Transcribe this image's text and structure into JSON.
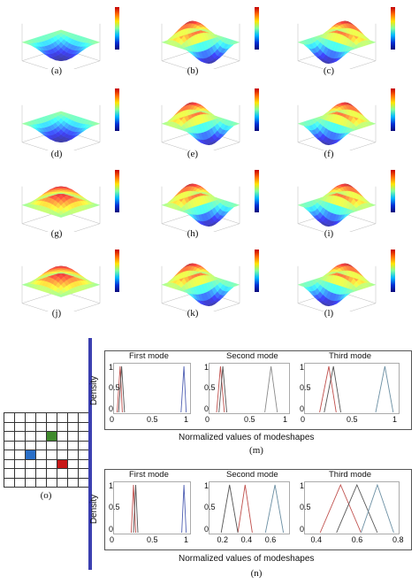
{
  "surface_panels": [
    {
      "id": "a",
      "caption": "(a)",
      "mode": "first",
      "sign": -1
    },
    {
      "id": "b",
      "caption": "(b)",
      "mode": "second",
      "sign": 1
    },
    {
      "id": "c",
      "caption": "(c)",
      "mode": "third",
      "sign": 1
    },
    {
      "id": "d",
      "caption": "(d)",
      "mode": "first",
      "sign": -1
    },
    {
      "id": "e",
      "caption": "(e)",
      "mode": "second",
      "sign": 1
    },
    {
      "id": "f",
      "caption": "(f)",
      "mode": "third",
      "sign": 1
    },
    {
      "id": "g",
      "caption": "(g)",
      "mode": "first",
      "sign": 1
    },
    {
      "id": "h",
      "caption": "(h)",
      "mode": "second",
      "sign": 1
    },
    {
      "id": "i",
      "caption": "(i)",
      "mode": "third",
      "sign": 1
    },
    {
      "id": "j",
      "caption": "(j)",
      "mode": "first",
      "sign": 1
    },
    {
      "id": "k",
      "caption": "(k)",
      "mode": "second",
      "sign": 1
    },
    {
      "id": "l",
      "caption": "(l)",
      "mode": "third",
      "sign": 1
    }
  ],
  "grid_panel": {
    "caption": "(o)",
    "rows": 8,
    "cols": 8,
    "highlighted_cells": [
      {
        "row": 2,
        "col": 4,
        "color": "#3f8a2c"
      },
      {
        "row": 4,
        "col": 2,
        "color": "#2a6fc7"
      },
      {
        "row": 5,
        "col": 5,
        "color": "#c81818"
      }
    ]
  },
  "density_figures": [
    {
      "caption": "(m)",
      "ylabel": "Density",
      "xlabel": "Normalized values of modeshapes",
      "chart_data": [
        {
          "type": "line",
          "title": "First mode",
          "ylim": [
            0,
            1
          ],
          "xticks": [
            "0",
            "0.5",
            "1"
          ],
          "yticks": [
            "0",
            "0.5",
            "1"
          ],
          "series": [
            {
              "color": "#c0504d",
              "values": [
                [
                  0.03,
                  0
                ],
                [
                  0.07,
                  1
                ],
                [
                  0.1,
                  0
                ]
              ]
            },
            {
              "color": "#555555",
              "values": [
                [
                  0.05,
                  0
                ],
                [
                  0.09,
                  1
                ],
                [
                  0.13,
                  0
                ]
              ]
            },
            {
              "color": "#4f5fb3",
              "values": [
                [
                  0.89,
                  0
                ],
                [
                  0.93,
                  1
                ],
                [
                  0.96,
                  0
                ]
              ]
            }
          ]
        },
        {
          "type": "line",
          "title": "Second mode",
          "ylim": [
            0,
            1
          ],
          "xticks": [
            "0",
            "0.5",
            "1"
          ],
          "yticks": [
            "0",
            "0.5",
            "1"
          ],
          "series": [
            {
              "color": "#c0504d",
              "values": [
                [
                  0.08,
                  0
                ],
                [
                  0.13,
                  1
                ],
                [
                  0.18,
                  0
                ]
              ]
            },
            {
              "color": "#555555",
              "values": [
                [
                  0.11,
                  0
                ],
                [
                  0.16,
                  1
                ],
                [
                  0.21,
                  0
                ]
              ]
            },
            {
              "color": "#888888",
              "values": [
                [
                  0.7,
                  0
                ],
                [
                  0.78,
                  1
                ],
                [
                  0.86,
                  0
                ]
              ]
            }
          ]
        },
        {
          "type": "line",
          "title": "Third mode",
          "ylim": [
            0,
            1
          ],
          "xticks": [
            "0",
            "0.5",
            "1"
          ],
          "yticks": [
            "0",
            "0.5",
            "1"
          ],
          "series": [
            {
              "color": "#c0504d",
              "values": [
                [
                  0.15,
                  0
                ],
                [
                  0.25,
                  1
                ],
                [
                  0.33,
                  0
                ]
              ]
            },
            {
              "color": "#555555",
              "values": [
                [
                  0.2,
                  0
                ],
                [
                  0.3,
                  1
                ],
                [
                  0.38,
                  0
                ]
              ]
            },
            {
              "color": "#6b8fa3",
              "values": [
                [
                  0.76,
                  0
                ],
                [
                  0.86,
                  1
                ],
                [
                  0.95,
                  0
                ]
              ]
            }
          ]
        }
      ]
    },
    {
      "caption": "(n)",
      "ylabel": "Density",
      "xlabel": "Normalized values of modeshapes",
      "chart_data": [
        {
          "type": "line",
          "title": "First mode",
          "ylim": [
            0,
            1
          ],
          "xticks": [
            "0",
            "0.5",
            "1"
          ],
          "yticks": [
            "0",
            "0.5",
            "1"
          ],
          "series": [
            {
              "color": "#c0504d",
              "values": [
                [
                  0.22,
                  0
                ],
                [
                  0.25,
                  1
                ],
                [
                  0.28,
                  0
                ]
              ]
            },
            {
              "color": "#555555",
              "values": [
                [
                  0.25,
                  0
                ],
                [
                  0.28,
                  1
                ],
                [
                  0.31,
                  0
                ]
              ]
            },
            {
              "color": "#4f5fb3",
              "values": [
                [
                  0.9,
                  0
                ],
                [
                  0.93,
                  1
                ],
                [
                  0.96,
                  0
                ]
              ]
            }
          ]
        },
        {
          "type": "line",
          "title": "Second mode",
          "xlim": [
            0.1,
            0.75
          ],
          "ylim": [
            0,
            1
          ],
          "xticks": [
            "0.2",
            "0.4",
            "0.6"
          ],
          "yticks": [
            "0",
            "0.5",
            "1"
          ],
          "series": [
            {
              "color": "#c0504d",
              "values": [
                [
                  0.33,
                  0
                ],
                [
                  0.39,
                  1
                ],
                [
                  0.45,
                  0
                ]
              ]
            },
            {
              "color": "#555555",
              "values": [
                [
                  0.19,
                  0
                ],
                [
                  0.26,
                  1
                ],
                [
                  0.33,
                  0
                ]
              ]
            },
            {
              "color": "#6b8fa3",
              "values": [
                [
                  0.56,
                  0
                ],
                [
                  0.64,
                  1
                ],
                [
                  0.71,
                  0
                ]
              ]
            }
          ]
        },
        {
          "type": "line",
          "title": "Third mode",
          "xlim": [
            0.35,
            0.8
          ],
          "ylim": [
            0,
            1
          ],
          "xticks": [
            "0.4",
            "0.6",
            "0.8"
          ],
          "yticks": [
            "0",
            "0.5",
            "1"
          ],
          "series": [
            {
              "color": "#c0504d",
              "values": [
                [
                  0.42,
                  0
                ],
                [
                  0.52,
                  1
                ],
                [
                  0.62,
                  0
                ]
              ]
            },
            {
              "color": "#555555",
              "values": [
                [
                  0.5,
                  0
                ],
                [
                  0.6,
                  1
                ],
                [
                  0.7,
                  0
                ]
              ]
            },
            {
              "color": "#6b8fa3",
              "values": [
                [
                  0.62,
                  0
                ],
                [
                  0.7,
                  1
                ],
                [
                  0.78,
                  0
                ]
              ]
            }
          ]
        }
      ]
    }
  ],
  "colors": {
    "separator": "#3b3fb0",
    "frame": "#555555"
  }
}
